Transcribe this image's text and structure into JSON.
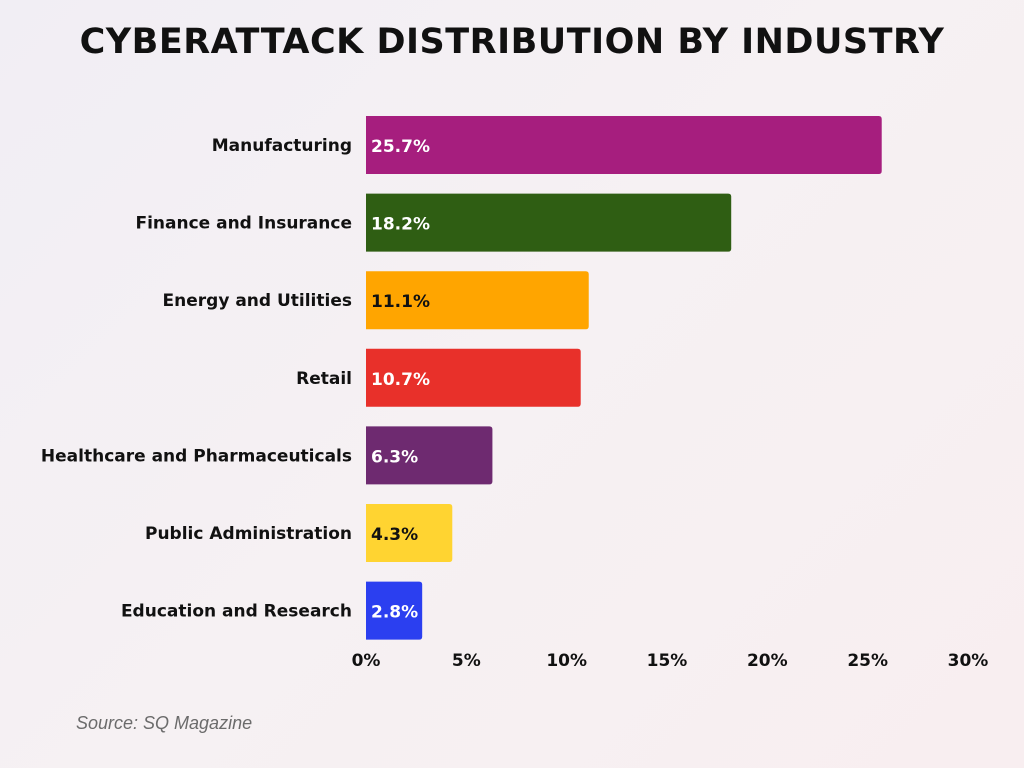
{
  "chart_data": {
    "type": "bar",
    "orientation": "horizontal",
    "title": "CYBERATTACK DISTRIBUTION BY INDUSTRY",
    "categories": [
      "Manufacturing",
      "Finance and Insurance",
      "Energy and Utilities",
      "Retail",
      "Healthcare and Pharmaceuticals",
      "Public Administration",
      "Education and Research"
    ],
    "values": [
      25.7,
      18.2,
      11.1,
      10.7,
      6.3,
      4.3,
      2.8
    ],
    "data_labels": [
      "25.7%",
      "18.2%",
      "11.1%",
      "10.7%",
      "6.3%",
      "4.3%",
      "2.8%"
    ],
    "colors": [
      "#A61E7E",
      "#2F5E13",
      "#FFA500",
      "#E8302A",
      "#6E2A70",
      "#FFD431",
      "#2B3FF0"
    ],
    "label_colors": [
      "#ffffff",
      "#ffffff",
      "#111111",
      "#ffffff",
      "#ffffff",
      "#111111",
      "#ffffff"
    ],
    "xlim": [
      0,
      30
    ],
    "xticks": [
      0,
      5,
      10,
      15,
      20,
      25,
      30
    ],
    "xtick_labels": [
      "0%",
      "5%",
      "10%",
      "15%",
      "20%",
      "25%",
      "30%"
    ],
    "xlabel": "",
    "ylabel": "",
    "grid": false,
    "source": "Source: SQ Magazine"
  }
}
